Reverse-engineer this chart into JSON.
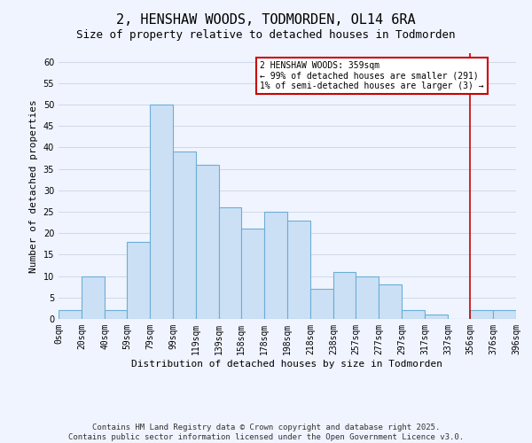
{
  "title": "2, HENSHAW WOODS, TODMORDEN, OL14 6RA",
  "subtitle": "Size of property relative to detached houses in Todmorden",
  "xlabel": "Distribution of detached houses by size in Todmorden",
  "ylabel": "Number of detached properties",
  "bar_heights": [
    2,
    10,
    2,
    18,
    50,
    39,
    36,
    26,
    21,
    25,
    23,
    7,
    11,
    10,
    8,
    2,
    1,
    0,
    2,
    2
  ],
  "bin_edges": [
    0,
    20,
    40,
    59,
    79,
    99,
    119,
    139,
    158,
    178,
    198,
    218,
    238,
    257,
    277,
    297,
    317,
    337,
    356,
    376,
    396
  ],
  "x_tick_labels": [
    "0sqm",
    "20sqm",
    "40sqm",
    "59sqm",
    "79sqm",
    "99sqm",
    "119sqm",
    "139sqm",
    "158sqm",
    "178sqm",
    "198sqm",
    "218sqm",
    "238sqm",
    "257sqm",
    "277sqm",
    "297sqm",
    "317sqm",
    "337sqm",
    "356sqm",
    "376sqm",
    "396sqm"
  ],
  "bar_facecolor": "#cce0f5",
  "bar_edgecolor": "#6aaed6",
  "bar_linewidth": 0.8,
  "red_line_x": 356,
  "red_line_color": "#cc0000",
  "ylim": [
    0,
    62
  ],
  "yticks": [
    0,
    5,
    10,
    15,
    20,
    25,
    30,
    35,
    40,
    45,
    50,
    55,
    60
  ],
  "legend_title": "2 HENSHAW WOODS: 359sqm",
  "legend_line1": "← 99% of detached houses are smaller (291)",
  "legend_line2": "1% of semi-detached houses are larger (3) →",
  "legend_facecolor": "#ffffff",
  "legend_edgecolor": "#cc0000",
  "footer_line1": "Contains HM Land Registry data © Crown copyright and database right 2025.",
  "footer_line2": "Contains public sector information licensed under the Open Government Licence v3.0.",
  "grid_color": "#d0d8e8",
  "bg_color": "#f0f4ff",
  "title_fontsize": 11,
  "subtitle_fontsize": 9,
  "axis_label_fontsize": 8,
  "tick_fontsize": 7,
  "legend_fontsize": 7,
  "footer_fontsize": 6.5
}
